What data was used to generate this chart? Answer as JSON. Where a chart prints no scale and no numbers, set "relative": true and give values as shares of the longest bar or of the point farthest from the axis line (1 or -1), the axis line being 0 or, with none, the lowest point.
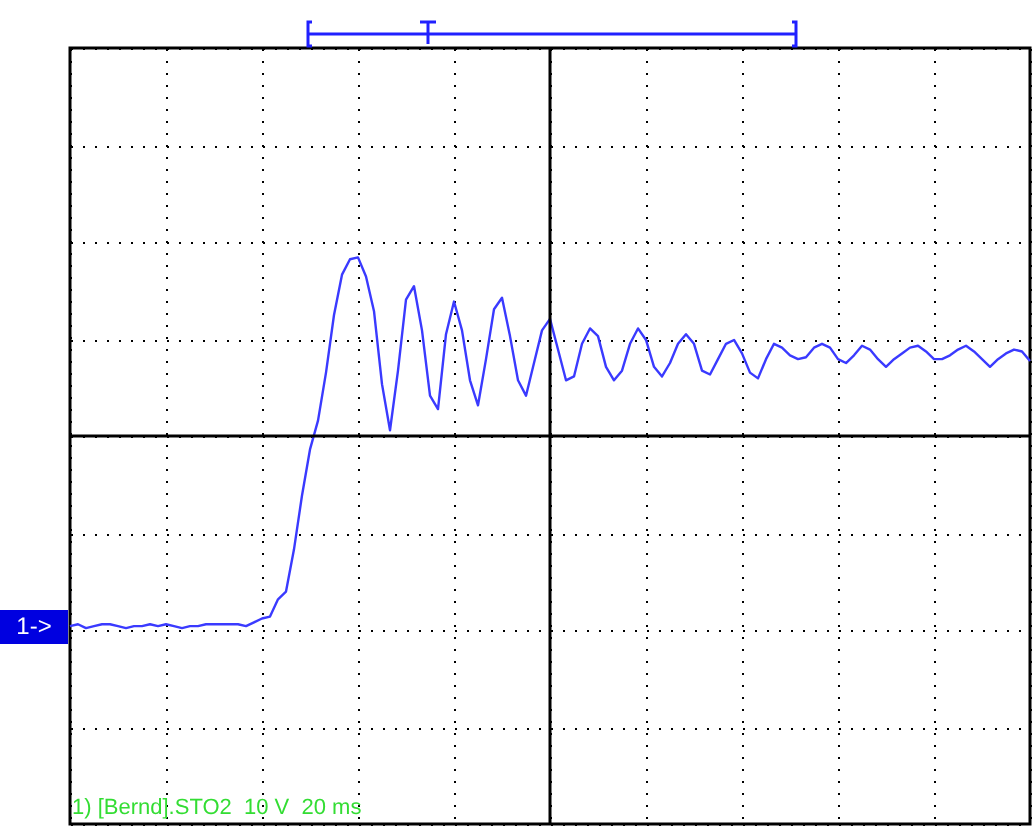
{
  "chart_data": {
    "type": "line",
    "relative": true,
    "grid": true,
    "tick_labels": false,
    "annotations": [
      "1->",
      "1) [Bernd].STO2  10 V  20 ms"
    ],
    "categories": [
      null,
      null,
      null,
      null,
      null,
      null,
      null,
      null,
      null,
      null,
      null,
      null,
      null,
      null,
      null,
      null,
      null,
      null,
      null,
      null,
      null,
      null,
      null,
      null,
      null,
      null,
      null,
      null,
      null,
      null,
      null,
      null,
      null,
      null,
      null,
      null,
      null,
      null,
      null,
      null,
      null,
      null,
      null,
      null,
      null,
      null,
      null,
      null,
      null,
      null,
      null,
      null,
      null,
      null,
      null,
      null,
      null,
      null,
      null,
      null,
      null,
      null,
      null,
      null,
      null,
      null,
      null,
      null,
      null,
      null,
      null,
      null,
      null,
      null,
      null,
      null,
      null,
      null,
      null,
      null,
      null,
      null,
      null,
      null,
      null,
      null,
      null,
      null,
      null,
      null,
      null,
      null,
      null,
      null,
      null,
      null,
      null,
      null,
      null,
      null,
      null,
      null,
      null,
      null,
      null,
      null,
      null,
      null,
      null,
      null,
      null,
      null,
      null,
      null,
      null,
      null,
      null,
      null,
      null,
      null,
      null
    ],
    "series": [
      {
        "color": "#3a3aff",
        "values": [
          -0.99,
          -0.98,
          -1.0,
          -0.99,
          -0.98,
          -0.98,
          -0.99,
          -1.0,
          -0.99,
          -0.99,
          -0.98,
          -0.99,
          -0.98,
          -0.99,
          -1.0,
          -0.99,
          -0.99,
          -0.98,
          -0.98,
          -0.98,
          -0.98,
          -0.98,
          -0.99,
          -0.97,
          -0.95,
          -0.94,
          -0.85,
          -0.81,
          -0.59,
          -0.31,
          -0.07,
          0.08,
          0.33,
          0.63,
          0.84,
          0.92,
          0.93,
          0.83,
          0.65,
          0.27,
          0.03,
          0.34,
          0.71,
          0.78,
          0.55,
          0.21,
          0.14,
          0.53,
          0.7,
          0.55,
          0.29,
          0.16,
          0.4,
          0.66,
          0.72,
          0.52,
          0.29,
          0.21,
          0.38,
          0.55,
          0.61,
          0.45,
          0.29,
          0.31,
          0.48,
          0.56,
          0.52,
          0.36,
          0.29,
          0.34,
          0.48,
          0.56,
          0.5,
          0.36,
          0.31,
          0.38,
          0.48,
          0.53,
          0.48,
          0.34,
          0.32,
          0.4,
          0.48,
          0.5,
          0.43,
          0.33,
          0.3,
          0.4,
          0.48,
          0.46,
          0.42,
          0.4,
          0.41,
          0.46,
          0.48,
          0.46,
          0.4,
          0.38,
          0.42,
          0.47,
          0.45,
          0.4,
          0.36,
          0.4,
          0.43,
          0.46,
          0.47,
          0.44,
          0.4,
          0.4,
          0.42,
          0.45,
          0.47,
          0.44,
          0.4,
          0.36,
          0.4,
          0.43,
          0.45,
          0.44,
          0.39
        ]
      }
    ]
  }
}
